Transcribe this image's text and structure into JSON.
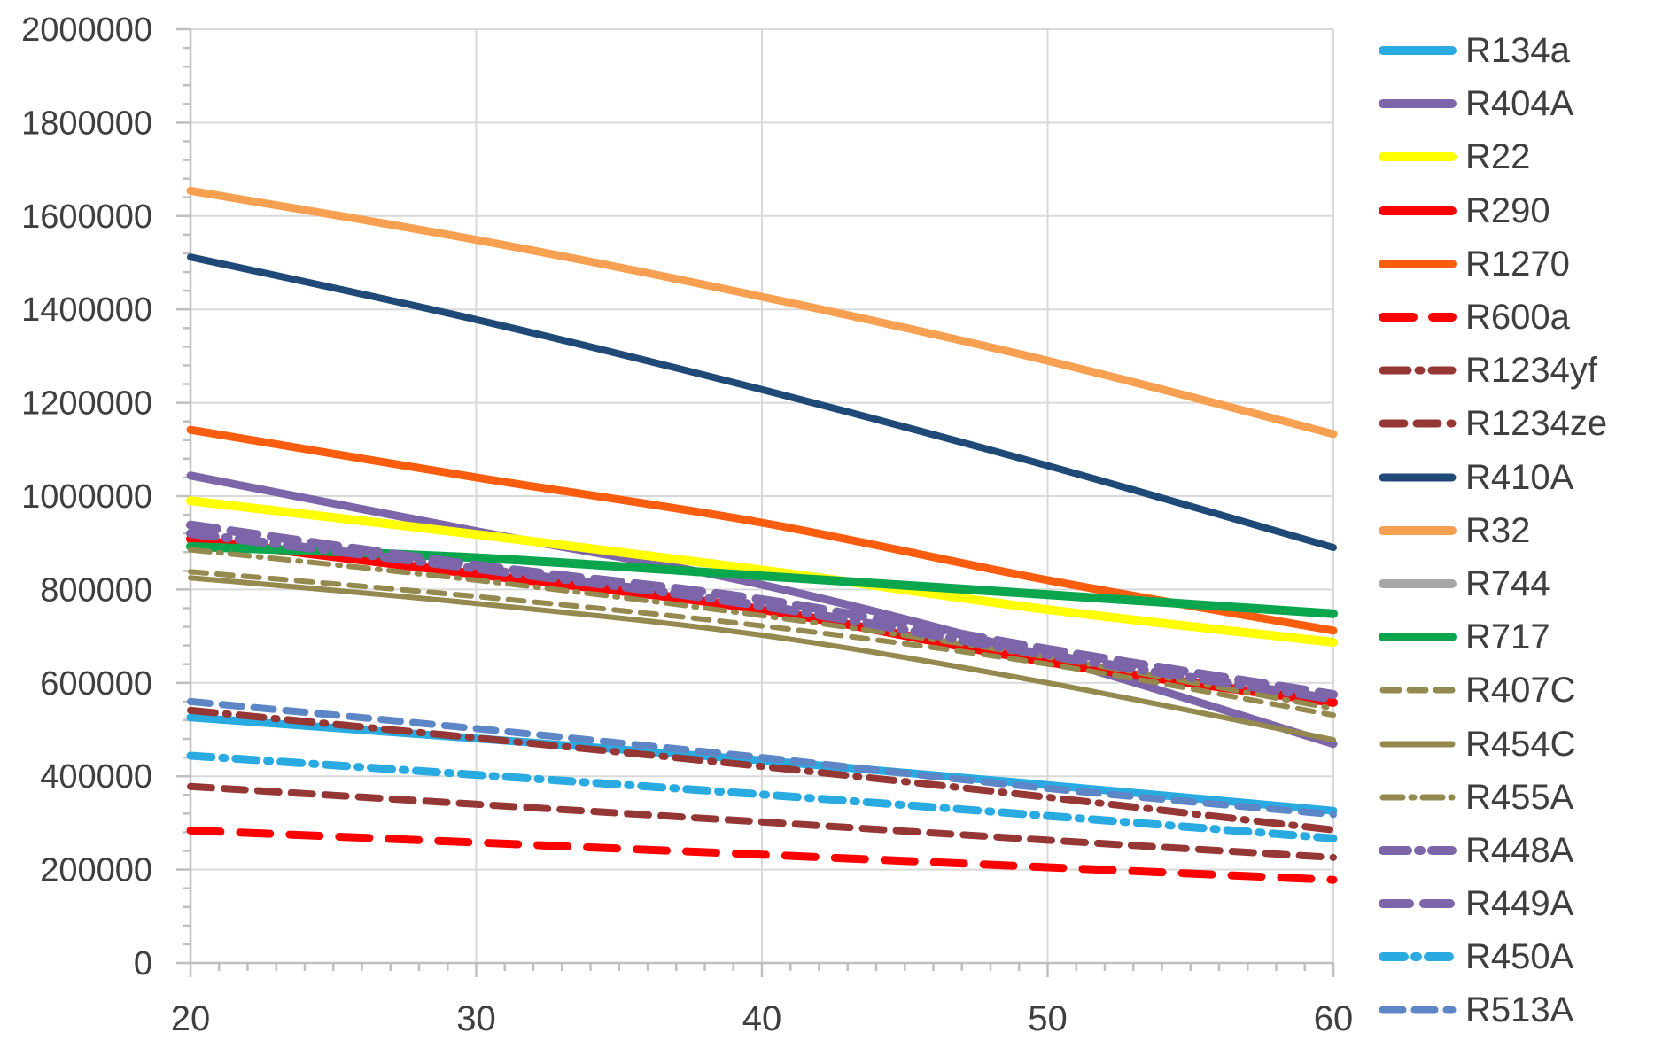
{
  "window": {
    "background_color": "#FFFFFF"
  },
  "chart_data": {
    "type": "line",
    "title": "",
    "xlabel": "",
    "ylabel": "",
    "xlim": [
      20,
      60
    ],
    "ylim": [
      0,
      2000000
    ],
    "x": [
      20,
      30,
      40,
      50,
      60
    ],
    "x_tick_labels": [
      "20",
      "30",
      "40",
      "50",
      "60"
    ],
    "y_tick_labels": [
      "0",
      "200000",
      "400000",
      "600000",
      "800000",
      "1000000",
      "1200000",
      "1400000",
      "1600000",
      "1800000",
      "2000000"
    ],
    "y_major_step": 200000,
    "y_minor_step": 40000,
    "x_major_step": 10,
    "x_minor_step": 1,
    "grid": true,
    "legend_position": "right",
    "style": {
      "grid_color": "#D9D9D9",
      "axis_color": "#BFBFBF",
      "tick_text_color": "#3F3F3F"
    },
    "series": [
      {
        "name": "R134a",
        "color": "#29ABE2",
        "pattern": "solid",
        "dasharray": null,
        "width": 9,
        "visible": true,
        "values": [
          526000,
          481000,
          434000,
          381000,
          326000
        ]
      },
      {
        "name": "R404A",
        "color": "#7C65A8",
        "pattern": "solid",
        "dasharray": null,
        "width": 9,
        "visible": true,
        "values": [
          1044000,
          925000,
          810000,
          655000,
          469000
        ]
      },
      {
        "name": "R22",
        "color": "#FFFF00",
        "pattern": "solid",
        "dasharray": null,
        "width": 10,
        "visible": true,
        "values": [
          990000,
          918000,
          842000,
          757000,
          687000
        ]
      },
      {
        "name": "R290",
        "color": "#FF0000",
        "pattern": "solid",
        "dasharray": null,
        "width": 10,
        "visible": true,
        "values": [
          908000,
          833000,
          757000,
          645000,
          558000
        ]
      },
      {
        "name": "R1270",
        "color": "#FA5D0E",
        "pattern": "solid",
        "dasharray": null,
        "width": 9,
        "visible": true,
        "values": [
          1142000,
          1040000,
          943000,
          820000,
          712000
        ]
      },
      {
        "name": "R600a",
        "color": "#FF0000",
        "pattern": "dash",
        "dasharray": "34 22",
        "width": 9,
        "visible": true,
        "values": [
          284000,
          258000,
          232000,
          205000,
          178000
        ]
      },
      {
        "name": "R1234yf",
        "color": "#953735",
        "pattern": "dash-dot",
        "dasharray": "28 12 3 12",
        "width": 8,
        "visible": true,
        "values": [
          541000,
          482000,
          421000,
          355000,
          285000
        ]
      },
      {
        "name": "R1234ze",
        "color": "#953735",
        "pattern": "dash",
        "dasharray": "24 14",
        "width": 8,
        "visible": true,
        "values": [
          378000,
          340000,
          302000,
          263000,
          226000
        ]
      },
      {
        "name": "R410A",
        "color": "#1F4A78",
        "pattern": "solid",
        "dasharray": null,
        "width": 8,
        "visible": true,
        "values": [
          1512000,
          1378000,
          1228000,
          1065000,
          890000
        ]
      },
      {
        "name": "R32",
        "color": "#F8A052",
        "pattern": "solid",
        "dasharray": null,
        "width": 9,
        "visible": true,
        "values": [
          1654000,
          1549000,
          1427000,
          1290000,
          1133000
        ]
      },
      {
        "name": "R744",
        "color": "#A6A6A6",
        "pattern": "solid",
        "dasharray": null,
        "width": 9,
        "visible": false,
        "values": null,
        "off_scale": true
      },
      {
        "name": "R717",
        "color": "#0AA64D",
        "pattern": "solid",
        "dasharray": null,
        "width": 10,
        "visible": true,
        "values": [
          892000,
          868000,
          829000,
          789000,
          748000
        ]
      },
      {
        "name": "R407C",
        "color": "#94894E",
        "pattern": "dash",
        "dasharray": "18 12",
        "width": 6,
        "visible": true,
        "values": [
          838000,
          785000,
          722000,
          640000,
          531000
        ]
      },
      {
        "name": "R454C",
        "color": "#94894E",
        "pattern": "solid",
        "dasharray": null,
        "width": 6,
        "visible": true,
        "values": [
          825000,
          770000,
          702000,
          600000,
          478000
        ]
      },
      {
        "name": "R455A",
        "color": "#94894E",
        "pattern": "dash-dot",
        "dasharray": "22 10 3 10",
        "width": 6,
        "visible": true,
        "values": [
          885000,
          820000,
          744000,
          655000,
          545000
        ]
      },
      {
        "name": "R448A",
        "color": "#7C65A8",
        "pattern": "dash-dot",
        "dasharray": "28 12 3 12",
        "width": 10,
        "visible": true,
        "values": [
          920000,
          845000,
          765000,
          660000,
          565000
        ]
      },
      {
        "name": "R449A",
        "color": "#7C65A8",
        "pattern": "dash",
        "dasharray": "30 16",
        "width": 10,
        "visible": true,
        "values": [
          938000,
          852000,
          778000,
          672000,
          575000
        ]
      },
      {
        "name": "R450A",
        "color": "#29ABE2",
        "pattern": "dash-dot",
        "dasharray": "24 12 3 12",
        "width": 9,
        "visible": true,
        "values": [
          444000,
          403000,
          361000,
          315000,
          267000
        ]
      },
      {
        "name": "R513A",
        "color": "#5C86C6",
        "pattern": "dash",
        "dasharray": "22 14",
        "width": 8,
        "visible": true,
        "values": [
          560000,
          502000,
          440000,
          374000,
          318000
        ]
      }
    ]
  }
}
